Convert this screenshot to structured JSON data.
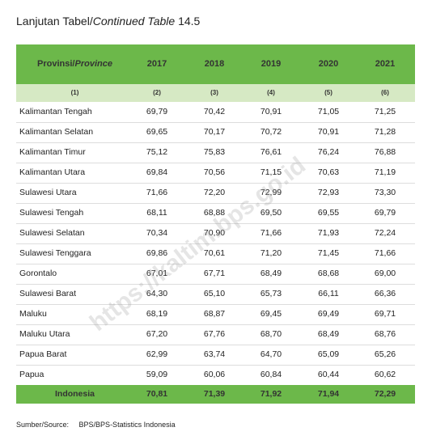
{
  "header": {
    "title_prefix": "Lanjutan Tabel/",
    "title_italic": "Continued Table",
    "title_number": "14.5"
  },
  "table": {
    "province_label": "Provinsi/",
    "province_label_italic": "Province",
    "years": [
      "2017",
      "2018",
      "2019",
      "2020",
      "2021"
    ],
    "column_numbers": [
      "(1)",
      "(2)",
      "(3)",
      "(4)",
      "(5)",
      "(6)"
    ],
    "rows": [
      [
        "Kalimantan Tengah",
        "69,79",
        "70,42",
        "70,91",
        "71,05",
        "71,25"
      ],
      [
        "Kalimantan Selatan",
        "69,65",
        "70,17",
        "70,72",
        "70,91",
        "71,28"
      ],
      [
        "Kalimantan Timur",
        "75,12",
        "75,83",
        "76,61",
        "76,24",
        "76,88"
      ],
      [
        "Kalimantan Utara",
        "69,84",
        "70,56",
        "71,15",
        "70,63",
        "71,19"
      ],
      [
        "Sulawesi Utara",
        "71,66",
        "72,20",
        "72,99",
        "72,93",
        "73,30"
      ],
      [
        "Sulawesi Tengah",
        "68,11",
        "68,88",
        "69,50",
        "69,55",
        "69,79"
      ],
      [
        "Sulawesi Selatan",
        "70,34",
        "70,90",
        "71,66",
        "71,93",
        "72,24"
      ],
      [
        "Sulawesi Tenggara",
        "69,86",
        "70,61",
        "71,20",
        "71,45",
        "71,66"
      ],
      [
        "Gorontalo",
        "67,01",
        "67,71",
        "68,49",
        "68,68",
        "69,00"
      ],
      [
        "Sulawesi Barat",
        "64,30",
        "65,10",
        "65,73",
        "66,11",
        "66,36"
      ],
      [
        "Maluku",
        "68,19",
        "68,87",
        "69,45",
        "69,49",
        "69,71"
      ],
      [
        "Maluku Utara",
        "67,20",
        "67,76",
        "68,70",
        "68,49",
        "68,76"
      ],
      [
        "Papua Barat",
        "62,99",
        "63,74",
        "64,70",
        "65,09",
        "65,26"
      ],
      [
        "Papua",
        "59,09",
        "60,06",
        "60,84",
        "60,44",
        "60,62"
      ]
    ],
    "total": [
      "Indonesia",
      "70,81",
      "71,39",
      "71,92",
      "71,94",
      "72,29"
    ]
  },
  "watermark": "https://kaltim.bps.go.id",
  "source": {
    "label": "Sumber/Source:",
    "text": "BPS/BPS-Statistics Indonesia"
  }
}
